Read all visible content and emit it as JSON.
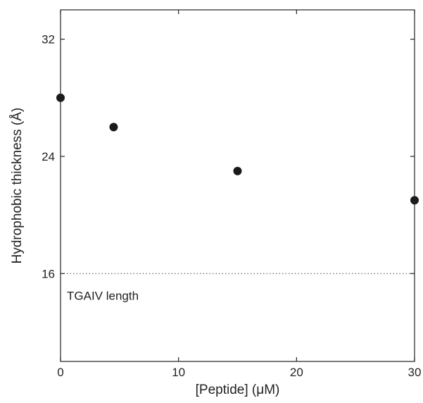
{
  "chart_data": {
    "type": "scatter",
    "title": "",
    "xlabel": "[Peptide] (μM)",
    "ylabel": "Hydrophobic thickness (Å)",
    "xlim": [
      0,
      30
    ],
    "ylim": [
      10,
      34
    ],
    "xticks": [
      0,
      10,
      20,
      30
    ],
    "yticks": [
      16,
      24,
      32
    ],
    "grid": false,
    "legend": "none",
    "series": [
      {
        "x": [
          0,
          4.5,
          15,
          30
        ],
        "y": [
          28,
          26,
          23,
          21
        ],
        "color": "#1a1a1a"
      }
    ],
    "reference_line": {
      "y": 16,
      "style": "dotted",
      "label": "TGAIV length"
    }
  }
}
